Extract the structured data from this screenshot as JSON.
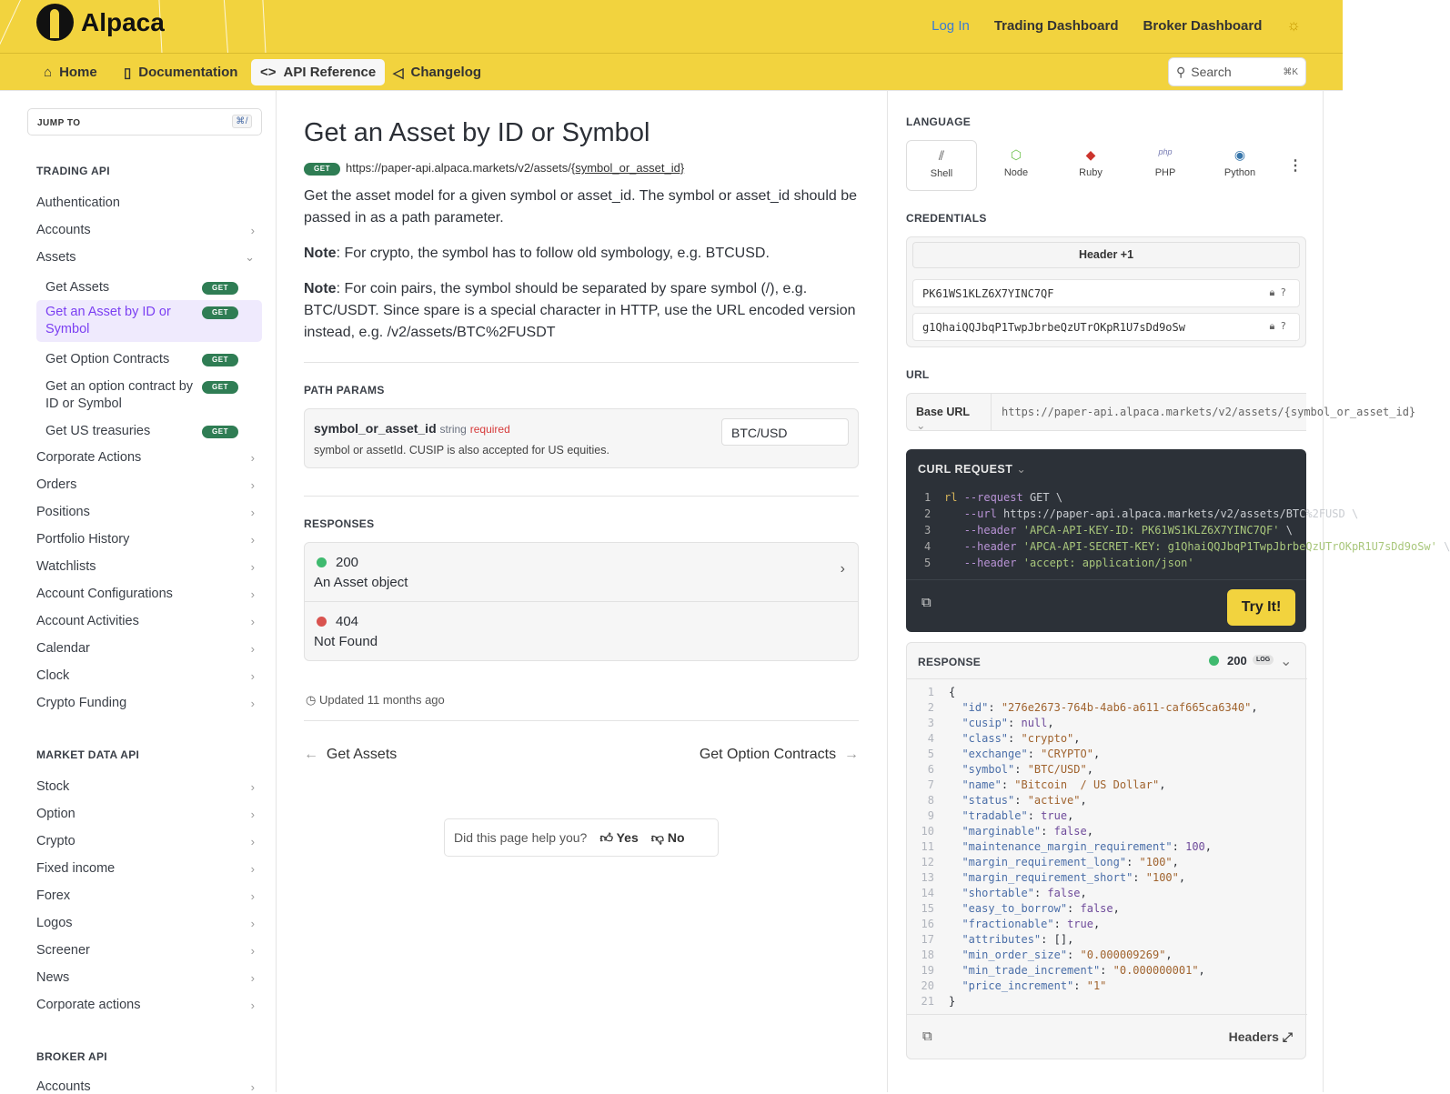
{
  "header": {
    "brand": "Alpaca",
    "login": "Log In",
    "trading_dashboard": "Trading Dashboard",
    "broker_dashboard": "Broker Dashboard"
  },
  "nav": {
    "tabs": [
      {
        "label": "Home",
        "icon": "home-icon"
      },
      {
        "label": "Documentation",
        "icon": "book-icon"
      },
      {
        "label": "API Reference",
        "icon": "code-icon",
        "active": true
      },
      {
        "label": "Changelog",
        "icon": "megaphone-icon"
      }
    ],
    "search_placeholder": "Search",
    "search_shortcut": "⌘K"
  },
  "sidebar": {
    "jump_to": "JUMP TO",
    "jump_shortcut": "⌘/",
    "trading_api": "TRADING API",
    "market_data_api": "MARKET DATA API",
    "broker_api": "BROKER API",
    "trading_items_top": [
      {
        "label": "Authentication"
      },
      {
        "label": "Accounts",
        "chev": "›"
      },
      {
        "label": "Assets",
        "chev": "⌄"
      }
    ],
    "asset_subitems": [
      {
        "label": "Get Assets",
        "method": "GET"
      },
      {
        "label": "Get an Asset by ID or Symbol",
        "method": "GET",
        "active": true
      },
      {
        "label": "Get Option Contracts",
        "method": "GET"
      },
      {
        "label": "Get an option contract by ID or Symbol",
        "method": "GET"
      },
      {
        "label": "Get US treasuries",
        "method": "GET"
      }
    ],
    "trading_items_bottom": [
      "Corporate Actions",
      "Orders",
      "Positions",
      "Portfolio History",
      "Watchlists",
      "Account Configurations",
      "Account Activities",
      "Calendar",
      "Clock",
      "Crypto Funding"
    ],
    "market_items": [
      "Stock",
      "Option",
      "Crypto",
      "Fixed income",
      "Forex",
      "Logos",
      "Screener",
      "News",
      "Corporate actions"
    ],
    "broker_items": [
      "Accounts"
    ]
  },
  "main": {
    "title": "Get an Asset by ID or Symbol",
    "method": "GET",
    "url_base": "https://paper-api.alpaca.markets/v2/assets/",
    "url_param": "{symbol_or_asset_id}",
    "description": "Get the asset model for a given symbol or asset_id. The symbol or asset_id should be passed in as a path parameter.",
    "note_label": "Note",
    "note1": ": For crypto, the symbol has to follow old symbology, e.g. BTCUSD.",
    "note2": ": For coin pairs, the symbol should be separated by spare symbol (/), e.g. BTC/USDT. Since spare is a special character in HTTP, use the URL encoded version instead, e.g. /v2/assets/BTC%2FUSDT",
    "path_params_label": "PATH PARAMS",
    "param": {
      "name": "symbol_or_asset_id",
      "type": "string",
      "required": "required",
      "description": "symbol or assetId. CUSIP is also accepted for US equities.",
      "value": "BTC/USD"
    },
    "responses_label": "RESPONSES",
    "responses": [
      {
        "code": "200",
        "desc": "An Asset object",
        "color": "#3fba6f"
      },
      {
        "code": "404",
        "desc": "Not Found",
        "color": "#d9534f"
      }
    ],
    "updated": "Updated 11 months ago",
    "prev": "Get Assets",
    "next": "Get Option Contracts",
    "feedback": {
      "question": "Did this page help you?",
      "yes": "Yes",
      "no": "No"
    }
  },
  "right": {
    "language_label": "LANGUAGE",
    "languages": [
      {
        "label": "Shell",
        "icon": "shell-icon"
      },
      {
        "label": "Node",
        "icon": "node-icon"
      },
      {
        "label": "Ruby",
        "icon": "ruby-icon"
      },
      {
        "label": "PHP",
        "icon": "php-icon"
      },
      {
        "label": "Python",
        "icon": "python-icon"
      }
    ],
    "credentials_label": "CREDENTIALS",
    "header_tab": "Header +1",
    "key_id": "PK61WS1KLZ6X7YINC7QF",
    "secret": "g1QhaiQQJbqP1TwpJbrbeQzUTrOKpR1U7sDd9oSw",
    "url_label": "URL",
    "base_url": "Base URL",
    "url_value": "https://paper-api.alpaca.markets/v2/assets/{symbol_or_asset_id}",
    "curl_label": "CURL REQUEST",
    "curl_lines": [
      [
        [
          "v",
          "rl "
        ],
        [
          "p",
          "--request "
        ],
        [
          "t",
          "GET \\"
        ]
      ],
      [
        [
          "t",
          "   "
        ],
        [
          "p",
          "--url "
        ],
        [
          "t",
          "https://paper-api.alpaca.markets/v2/assets/BTC%2FUSD \\"
        ]
      ],
      [
        [
          "t",
          "   "
        ],
        [
          "p",
          "--header "
        ],
        [
          "g",
          "'APCA-API-KEY-ID: PK61WS1KLZ6X7YINC7QF'"
        ],
        [
          "t",
          " \\"
        ]
      ],
      [
        [
          "t",
          "   "
        ],
        [
          "p",
          "--header "
        ],
        [
          "g",
          "'APCA-API-SECRET-KEY: g1QhaiQQJbqP1TwpJbrbeQzUTrOKpR1U7sDd9oSw'"
        ],
        [
          "t",
          " \\"
        ]
      ],
      [
        [
          "t",
          "   "
        ],
        [
          "p",
          "--header "
        ],
        [
          "g",
          "'accept: application/json'"
        ]
      ]
    ],
    "try_it": "Try It!",
    "response_label": "RESPONSE",
    "response_status": "200",
    "log": "LOG",
    "headers": "Headers",
    "response_lines": [
      [
        [
          "t",
          "{"
        ]
      ],
      [
        [
          "t",
          "  "
        ],
        [
          "k",
          "\"id\""
        ],
        [
          "t",
          ": "
        ],
        [
          "s",
          "\"276e2673-764b-4ab6-a611-caf665ca6340\""
        ],
        [
          "t",
          ","
        ]
      ],
      [
        [
          "t",
          "  "
        ],
        [
          "k",
          "\"cusip\""
        ],
        [
          "t",
          ": "
        ],
        [
          "v",
          "null"
        ],
        [
          "t",
          ","
        ]
      ],
      [
        [
          "t",
          "  "
        ],
        [
          "k",
          "\"class\""
        ],
        [
          "t",
          ": "
        ],
        [
          "s",
          "\"crypto\""
        ],
        [
          "t",
          ","
        ]
      ],
      [
        [
          "t",
          "  "
        ],
        [
          "k",
          "\"exchange\""
        ],
        [
          "t",
          ": "
        ],
        [
          "s",
          "\"CRYPTO\""
        ],
        [
          "t",
          ","
        ]
      ],
      [
        [
          "t",
          "  "
        ],
        [
          "k",
          "\"symbol\""
        ],
        [
          "t",
          ": "
        ],
        [
          "s",
          "\"BTC/USD\""
        ],
        [
          "t",
          ","
        ]
      ],
      [
        [
          "t",
          "  "
        ],
        [
          "k",
          "\"name\""
        ],
        [
          "t",
          ": "
        ],
        [
          "s",
          "\"Bitcoin  / US Dollar\""
        ],
        [
          "t",
          ","
        ]
      ],
      [
        [
          "t",
          "  "
        ],
        [
          "k",
          "\"status\""
        ],
        [
          "t",
          ": "
        ],
        [
          "s",
          "\"active\""
        ],
        [
          "t",
          ","
        ]
      ],
      [
        [
          "t",
          "  "
        ],
        [
          "k",
          "\"tradable\""
        ],
        [
          "t",
          ": "
        ],
        [
          "v",
          "true"
        ],
        [
          "t",
          ","
        ]
      ],
      [
        [
          "t",
          "  "
        ],
        [
          "k",
          "\"marginable\""
        ],
        [
          "t",
          ": "
        ],
        [
          "v",
          "false"
        ],
        [
          "t",
          ","
        ]
      ],
      [
        [
          "t",
          "  "
        ],
        [
          "k",
          "\"maintenance_margin_requirement\""
        ],
        [
          "t",
          ": "
        ],
        [
          "v",
          "100"
        ],
        [
          "t",
          ","
        ]
      ],
      [
        [
          "t",
          "  "
        ],
        [
          "k",
          "\"margin_requirement_long\""
        ],
        [
          "t",
          ": "
        ],
        [
          "s",
          "\"100\""
        ],
        [
          "t",
          ","
        ]
      ],
      [
        [
          "t",
          "  "
        ],
        [
          "k",
          "\"margin_requirement_short\""
        ],
        [
          "t",
          ": "
        ],
        [
          "s",
          "\"100\""
        ],
        [
          "t",
          ","
        ]
      ],
      [
        [
          "t",
          "  "
        ],
        [
          "k",
          "\"shortable\""
        ],
        [
          "t",
          ": "
        ],
        [
          "v",
          "false"
        ],
        [
          "t",
          ","
        ]
      ],
      [
        [
          "t",
          "  "
        ],
        [
          "k",
          "\"easy_to_borrow\""
        ],
        [
          "t",
          ": "
        ],
        [
          "v",
          "false"
        ],
        [
          "t",
          ","
        ]
      ],
      [
        [
          "t",
          "  "
        ],
        [
          "k",
          "\"fractionable\""
        ],
        [
          "t",
          ": "
        ],
        [
          "v",
          "true"
        ],
        [
          "t",
          ","
        ]
      ],
      [
        [
          "t",
          "  "
        ],
        [
          "k",
          "\"attributes\""
        ],
        [
          "t",
          ": []"
        ],
        [
          "t",
          ","
        ]
      ],
      [
        [
          "t",
          "  "
        ],
        [
          "k",
          "\"min_order_size\""
        ],
        [
          "t",
          ": "
        ],
        [
          "s",
          "\"0.000009269\""
        ],
        [
          "t",
          ","
        ]
      ],
      [
        [
          "t",
          "  "
        ],
        [
          "k",
          "\"min_trade_increment\""
        ],
        [
          "t",
          ": "
        ],
        [
          "s",
          "\"0.000000001\""
        ],
        [
          "t",
          ","
        ]
      ],
      [
        [
          "t",
          "  "
        ],
        [
          "k",
          "\"price_increment\""
        ],
        [
          "t",
          ": "
        ],
        [
          "s",
          "\"1\""
        ]
      ],
      [
        [
          "t",
          "}"
        ]
      ]
    ]
  },
  "colors": {
    "brand_yellow": "#f2d33e",
    "get_green": "#2f7d54",
    "active_purple": "#7b3ff2"
  }
}
